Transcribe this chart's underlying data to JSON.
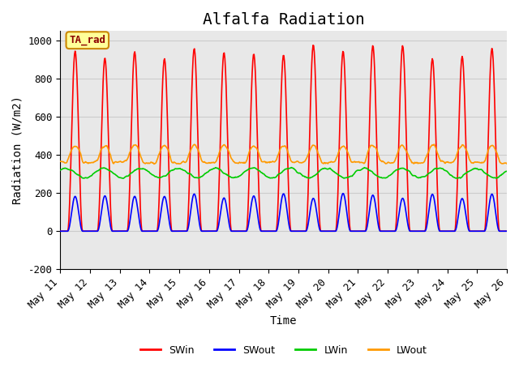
{
  "title": "Alfalfa Radiation",
  "xlabel": "Time",
  "ylabel": "Radiation (W/m2)",
  "ylim": [
    -200,
    1050
  ],
  "xlim_days": [
    0,
    15
  ],
  "n_days": 15,
  "dt_hours": 0.5,
  "legend_labels": [
    "SWin",
    "SWout",
    "LWin",
    "LWout"
  ],
  "legend_colors": [
    "#ff0000",
    "#0000ff",
    "#00cc00",
    "#ff9900"
  ],
  "annotation_text": "TA_rad",
  "annotation_bg": "#ffff99",
  "annotation_border": "#cc8800",
  "grid_color": "#cccccc",
  "bg_color": "#e8e8e8",
  "SWin_peak": 980,
  "SWout_peak": 200,
  "LWin_base": 305,
  "LWin_amp": 25,
  "LWout_base": 370,
  "LWout_amp": 80,
  "title_fontsize": 14,
  "axis_label_fontsize": 10,
  "tick_label_fontsize": 9
}
